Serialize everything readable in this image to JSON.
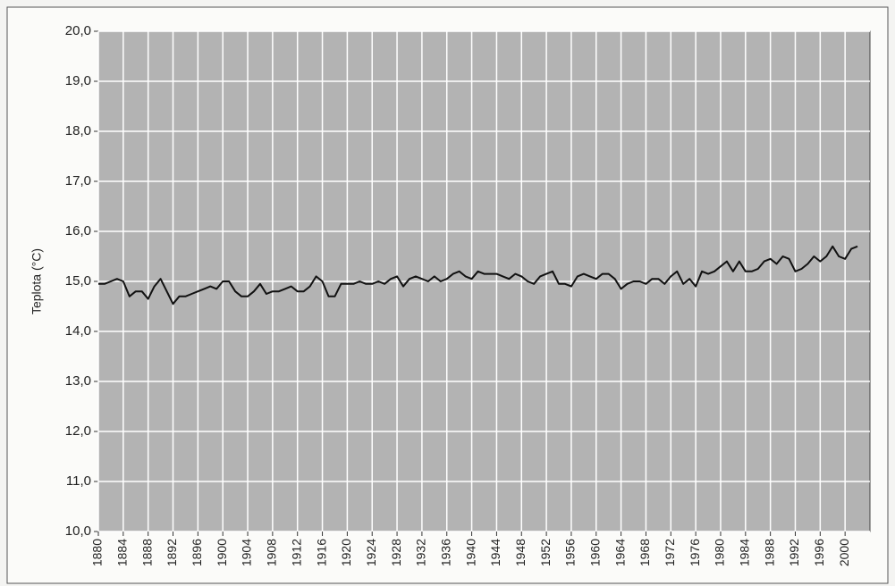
{
  "chart_data": {
    "type": "line",
    "y_label": "Teplota (°C)",
    "color": "#111111",
    "grid": true,
    "x": [
      1880,
      1881,
      1882,
      1883,
      1884,
      1885,
      1886,
      1887,
      1888,
      1889,
      1890,
      1891,
      1892,
      1893,
      1894,
      1895,
      1896,
      1897,
      1898,
      1899,
      1900,
      1901,
      1902,
      1903,
      1904,
      1905,
      1906,
      1907,
      1908,
      1909,
      1910,
      1911,
      1912,
      1913,
      1914,
      1915,
      1916,
      1917,
      1918,
      1919,
      1920,
      1921,
      1922,
      1923,
      1924,
      1925,
      1926,
      1927,
      1928,
      1929,
      1930,
      1931,
      1932,
      1933,
      1934,
      1935,
      1936,
      1937,
      1938,
      1939,
      1940,
      1941,
      1942,
      1943,
      1944,
      1945,
      1946,
      1947,
      1948,
      1949,
      1950,
      1951,
      1952,
      1953,
      1954,
      1955,
      1956,
      1957,
      1958,
      1959,
      1960,
      1961,
      1962,
      1963,
      1964,
      1965,
      1966,
      1967,
      1968,
      1969,
      1970,
      1971,
      1972,
      1973,
      1974,
      1975,
      1976,
      1977,
      1978,
      1979,
      1980,
      1981,
      1982,
      1983,
      1984,
      1985,
      1986,
      1987,
      1988,
      1989,
      1990,
      1991,
      1992,
      1993,
      1994,
      1995,
      1996,
      1997,
      1998,
      1999,
      2000,
      2001,
      2002
    ],
    "values": [
      14.95,
      14.95,
      15.0,
      15.05,
      15.0,
      14.7,
      14.8,
      14.8,
      14.65,
      14.9,
      15.05,
      14.8,
      14.55,
      14.7,
      14.7,
      14.75,
      14.8,
      14.85,
      14.9,
      14.85,
      15.0,
      15.0,
      14.8,
      14.7,
      14.7,
      14.8,
      14.95,
      14.75,
      14.8,
      14.8,
      14.85,
      14.9,
      14.8,
      14.8,
      14.9,
      15.1,
      15.0,
      14.7,
      14.7,
      14.95,
      14.95,
      14.95,
      15.0,
      14.95,
      14.95,
      15.0,
      14.95,
      15.05,
      15.1,
      14.9,
      15.05,
      15.1,
      15.05,
      15.0,
      15.1,
      15.0,
      15.05,
      15.15,
      15.2,
      15.1,
      15.05,
      15.2,
      15.15,
      15.15,
      15.15,
      15.1,
      15.05,
      15.15,
      15.1,
      15.0,
      14.95,
      15.1,
      15.15,
      15.2,
      14.95,
      14.95,
      14.9,
      15.1,
      15.15,
      15.1,
      15.05,
      15.15,
      15.15,
      15.05,
      14.85,
      14.95,
      15.0,
      15.0,
      14.95,
      15.05,
      15.05,
      14.95,
      15.1,
      15.2,
      14.95,
      15.05,
      14.9,
      15.2,
      15.15,
      15.2,
      15.3,
      15.4,
      15.2,
      15.4,
      15.2,
      15.2,
      15.25,
      15.4,
      15.45,
      15.35,
      15.5,
      15.45,
      15.2,
      15.25,
      15.35,
      15.5,
      15.4,
      15.5,
      15.7,
      15.5,
      15.45,
      15.65,
      15.7
    ],
    "xlim": [
      1880,
      2004
    ],
    "xticks": [
      1880,
      1884,
      1888,
      1892,
      1896,
      1900,
      1904,
      1908,
      1912,
      1916,
      1920,
      1924,
      1928,
      1932,
      1936,
      1940,
      1944,
      1948,
      1952,
      1956,
      1960,
      1964,
      1968,
      1972,
      1976,
      1980,
      1984,
      1988,
      1992,
      1996,
      2000
    ],
    "ylim": [
      10,
      20
    ],
    "yticks": [
      {
        "value": 10,
        "label": "10,0"
      },
      {
        "value": 11,
        "label": "11,0"
      },
      {
        "value": 12,
        "label": "12,0"
      },
      {
        "value": 13,
        "label": "13,0"
      },
      {
        "value": 14,
        "label": "14,0"
      },
      {
        "value": 15,
        "label": "15,0"
      },
      {
        "value": 16,
        "label": "16,0"
      },
      {
        "value": 17,
        "label": "17,0"
      },
      {
        "value": 18,
        "label": "18,0"
      },
      {
        "value": 19,
        "label": "19,0"
      },
      {
        "value": 20,
        "label": "20,0"
      }
    ]
  }
}
